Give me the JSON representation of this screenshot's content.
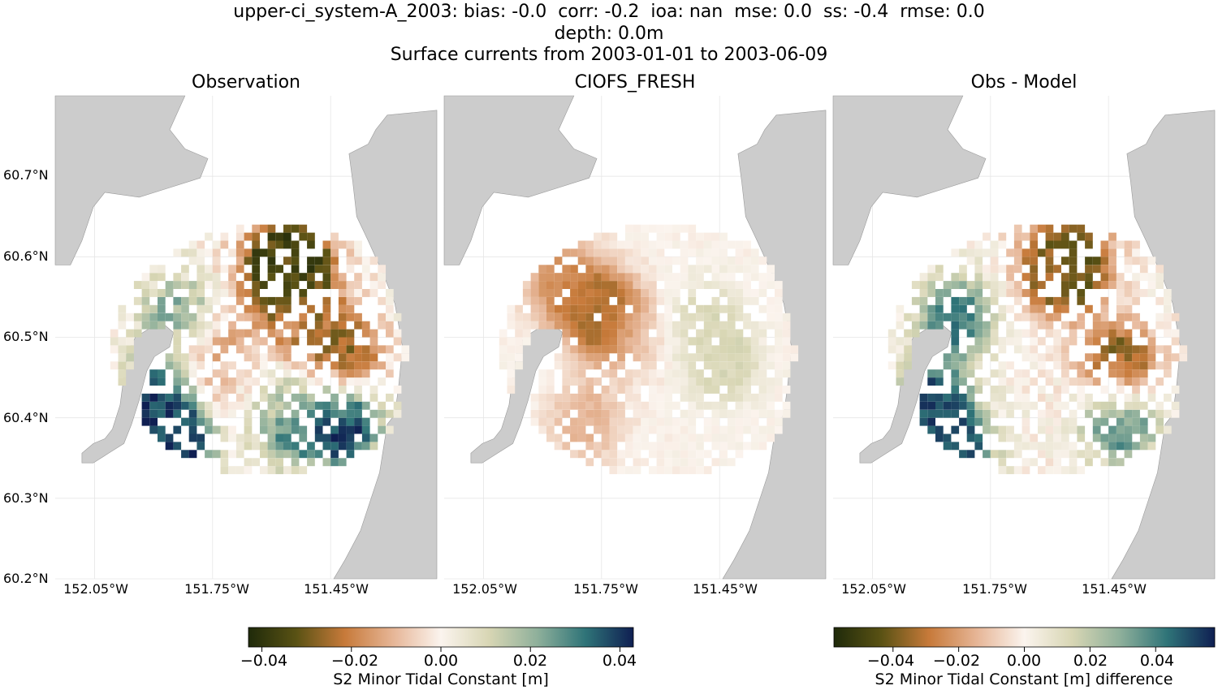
{
  "figure": {
    "title_line1": "upper-ci_system-A_2003: bias: -0.0  corr: -0.2  ioa: nan  mse: 0.0  ss: -0.4  rmse: 0.0",
    "title_line2": "depth: 0.0m",
    "title_line3": "Surface currents from 2003-01-01 to 2003-06-09"
  },
  "colors": {
    "land": "#cccccc",
    "grid": "#e6e6e6",
    "spine": "#dddddd"
  },
  "chart_data": {
    "type": "heatmap",
    "panels": [
      {
        "title": "Observation",
        "field": "observation"
      },
      {
        "title": "CIOFS_FRESH",
        "field": "model"
      },
      {
        "title": "Obs - Model",
        "field": "difference"
      }
    ],
    "lat_range": [
      60.2,
      60.8
    ],
    "lon_range": [
      -152.15,
      -151.18
    ],
    "lat_ticks": [
      60.2,
      60.3,
      60.4,
      60.5,
      60.6,
      60.7
    ],
    "lat_tick_labels": [
      "60.2°N",
      "60.3°N",
      "60.4°N",
      "60.5°N",
      "60.6°N",
      "60.7°N"
    ],
    "lon_ticks": [
      -152.05,
      -151.75,
      -151.45
    ],
    "lon_tick_labels": [
      "152.05°W",
      "151.75°W",
      "151.45°W"
    ],
    "colorbars": [
      {
        "label": "S2 Minor Tidal Constant [m]",
        "range": [
          -0.043,
          0.043
        ],
        "ticks": [
          -0.04,
          -0.02,
          0.0,
          0.02,
          0.04
        ],
        "tick_labels": [
          "−0.04",
          "−0.02",
          "0.00",
          "0.02",
          "0.04"
        ]
      },
      {
        "label": "S2 Minor Tidal Constant [m] difference",
        "range": [
          -0.058,
          0.058
        ],
        "ticks": [
          -0.04,
          -0.02,
          0.0,
          0.02,
          0.04
        ],
        "tick_labels": [
          "−0.04",
          "−0.02",
          "0.00",
          "0.02",
          "0.04"
        ]
      }
    ],
    "colormap_stops": [
      "#1f2a0a",
      "#5a5214",
      "#c77a3a",
      "#e6b596",
      "#fbf4ee",
      "#d8d6b4",
      "#8fb09b",
      "#2f7478",
      "#0f1f52"
    ],
    "grid_resolution_deg": 0.02,
    "observation": [
      {
        "lon": -151.6,
        "lat": 60.58,
        "value": -0.03
      },
      {
        "lon": -151.55,
        "lat": 60.6,
        "value": -0.04
      },
      {
        "lon": -151.52,
        "lat": 60.52,
        "value": -0.02
      },
      {
        "lon": -151.75,
        "lat": 60.48,
        "value": -0.018
      },
      {
        "lon": -151.85,
        "lat": 60.53,
        "value": 0.022
      },
      {
        "lon": -151.9,
        "lat": 60.42,
        "value": 0.04
      },
      {
        "lon": -151.85,
        "lat": 60.36,
        "value": 0.04
      },
      {
        "lon": -151.55,
        "lat": 60.4,
        "value": 0.028
      },
      {
        "lon": -151.43,
        "lat": 60.4,
        "value": 0.043
      },
      {
        "lon": -151.43,
        "lat": 60.48,
        "value": -0.03
      },
      {
        "lon": -151.65,
        "lat": 60.45,
        "value": 0.002
      }
    ],
    "model": [
      {
        "lon": -151.75,
        "lat": 60.53,
        "value": -0.028
      },
      {
        "lon": -151.85,
        "lat": 60.57,
        "value": -0.018
      },
      {
        "lon": -151.65,
        "lat": 60.5,
        "value": -0.004
      },
      {
        "lon": -151.5,
        "lat": 60.52,
        "value": 0.01
      },
      {
        "lon": -151.45,
        "lat": 60.47,
        "value": 0.01
      },
      {
        "lon": -151.8,
        "lat": 60.4,
        "value": -0.01
      }
    ],
    "difference": [
      {
        "lon": -151.6,
        "lat": 60.58,
        "value": -0.03
      },
      {
        "lon": -151.55,
        "lat": 60.6,
        "value": -0.045
      },
      {
        "lon": -151.85,
        "lat": 60.53,
        "value": 0.04
      },
      {
        "lon": -151.9,
        "lat": 60.42,
        "value": 0.05
      },
      {
        "lon": -151.85,
        "lat": 60.36,
        "value": 0.05
      },
      {
        "lon": -151.43,
        "lat": 60.4,
        "value": 0.04
      },
      {
        "lon": -151.43,
        "lat": 60.47,
        "value": -0.04
      }
    ]
  }
}
